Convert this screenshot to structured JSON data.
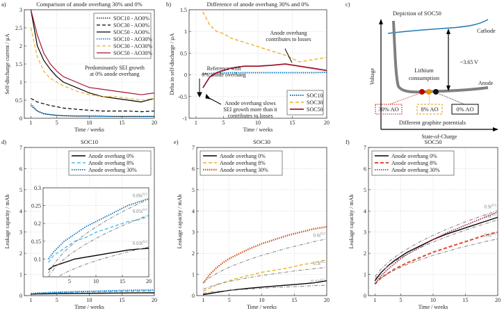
{
  "chart_data": [
    {
      "type": "line",
      "panel": "a)",
      "title": "Comparison of anode overhang 30% and 0%",
      "xlabel": "Time / weeks",
      "ylabel": "Self-discharge current / µA",
      "x": [
        1,
        2,
        3,
        4,
        5,
        6,
        8,
        10,
        12,
        14,
        16,
        18,
        20
      ],
      "xlim": [
        0,
        20
      ],
      "ylim": [
        0,
        3
      ],
      "xticks": [
        1,
        5,
        10,
        15,
        20
      ],
      "yticks": [
        0,
        0.5,
        1,
        1.5,
        2,
        2.5,
        3
      ],
      "grid": true,
      "legend": "upper right",
      "series": [
        {
          "name": "SOC10 - AO0%",
          "color": "#000000",
          "style": "dotted",
          "width": 1.2,
          "values": [
            0.35,
            0.2,
            0.12,
            0.1,
            0.08,
            0.07,
            0.06,
            0.06,
            0.06,
            0.05,
            0.05,
            0.05,
            0.05
          ]
        },
        {
          "name": "SOC30 - AO0%",
          "color": "#000000",
          "style": "dashed",
          "width": 1.2,
          "values": [
            0.55,
            0.45,
            0.4,
            0.35,
            0.32,
            0.28,
            0.25,
            0.22,
            0.2,
            0.2,
            0.2,
            0.18,
            0.2
          ]
        },
        {
          "name": "SOC50 - AO0%",
          "color": "#000000",
          "style": "solid",
          "width": 1.2,
          "values": [
            3,
            2,
            1.6,
            1.35,
            1.15,
            1.0,
            0.85,
            0.7,
            0.6,
            0.55,
            0.5,
            0.45,
            0.55
          ]
        },
        {
          "name": "SOC10 - AO30%",
          "color": "#0072bd",
          "style": "dotted",
          "width": 1.4,
          "values": [
            0.4,
            0.2,
            0.13,
            0.1,
            0.08,
            0.07,
            0.06,
            0.06,
            0.05,
            0.05,
            0.05,
            0.05,
            0.05
          ]
        },
        {
          "name": "SOC30 - AO30%",
          "color": "#edb120",
          "style": "dashed",
          "width": 1.2,
          "values": [
            2.5,
            1.7,
            1.3,
            1.1,
            1,
            0.9,
            0.75,
            0.65,
            0.6,
            0.6,
            0.55,
            0.5,
            0.55
          ]
        },
        {
          "name": "SOC50 - AO30%",
          "color": "#a2142f",
          "style": "solid",
          "width": 1.2,
          "values": [
            3,
            2.3,
            1.8,
            1.5,
            1.3,
            1.15,
            1,
            0.85,
            0.8,
            0.75,
            0.7,
            0.65,
            0.7
          ]
        }
      ],
      "annotations": [
        [
          "Predominantly SEI growth",
          "at 0% anode overhang"
        ]
      ]
    },
    {
      "type": "line",
      "panel": "b)",
      "title": "Difference of anode overhang 30% and 0%",
      "xlabel": "Time / weeks",
      "ylabel": "Delta in self-discharge / µA",
      "x": [
        1,
        2,
        3,
        4,
        5,
        6,
        8,
        10,
        12,
        14,
        16,
        18,
        20
      ],
      "xlim": [
        0,
        20
      ],
      "ylim": [
        -1,
        1.5
      ],
      "xticks": [
        1,
        5,
        10,
        15,
        20
      ],
      "yticks": [
        -1,
        -0.5,
        0,
        0.5,
        1,
        1.5
      ],
      "grid": true,
      "legend": "lower right",
      "series": [
        {
          "name": "SOC10",
          "color": "#0072bd",
          "style": "dotted",
          "width": 2,
          "values": [
            null,
            0.02,
            0.03,
            0.04,
            0.04,
            0.05,
            0.05,
            0.05,
            0.05,
            0.05,
            0.05,
            0.05,
            0.06
          ]
        },
        {
          "name": "SOC30",
          "color": "#edb120",
          "style": "dashed",
          "width": 1.4,
          "values": [
            null,
            1.45,
            1.15,
            1,
            0.95,
            0.85,
            0.75,
            0.65,
            0.55,
            0.45,
            0.3,
            0.35,
            0.4
          ]
        },
        {
          "name": "SOC50",
          "color": "#a2142f",
          "style": "solid",
          "width": 1.8,
          "values": [
            null,
            -0.3,
            -0.05,
            0.05,
            0.1,
            0.15,
            0.2,
            0.2,
            0.22,
            0.25,
            0.2,
            0.15,
            0.1
          ]
        }
      ],
      "annotations": [
        [
          "Anode overhang",
          "contributes to losses"
        ],
        [
          "Reference with",
          "0% anode overhang"
        ],
        [
          "Anode overhang slows",
          "SEI growth more than it",
          "contributes to losses"
        ]
      ]
    },
    {
      "type": "line",
      "panel": "d)",
      "title": "SOC10",
      "xlabel": "Time / weeks",
      "ylabel": "Leakage capacity / mAh",
      "x": [
        1,
        2,
        3,
        4,
        5,
        6,
        8,
        10,
        12,
        14,
        16,
        18,
        20
      ],
      "xlim": [
        0,
        20
      ],
      "ylim": [
        0,
        7
      ],
      "xticks": [
        1,
        5,
        10,
        15,
        20
      ],
      "yticks": [
        0,
        1,
        2,
        3,
        4,
        5,
        6,
        7
      ],
      "grid": true,
      "legend": "upper right",
      "series": [
        {
          "name": "Anode overhang 0%",
          "color": "#000000",
          "style": "solid",
          "width": 1.4,
          "values": [
            0.07,
            0.08,
            0.085,
            0.09,
            0.095,
            0.1,
            0.105,
            0.11,
            0.115,
            0.12,
            0.125,
            0.128,
            0.13
          ]
        },
        {
          "name": "Anode overhang 8%",
          "color": "#4dbeee",
          "style": "dashed",
          "width": 1.4,
          "values": [
            0.09,
            0.11,
            0.12,
            0.13,
            0.14,
            0.15,
            0.16,
            0.175,
            0.185,
            0.195,
            0.205,
            0.21,
            0.22
          ]
        },
        {
          "name": "Anode overhang 30%",
          "color": "#0072bd",
          "style": "dotted",
          "width": 1.8,
          "values": [
            0.1,
            0.12,
            0.135,
            0.15,
            0.16,
            0.17,
            0.19,
            0.205,
            0.22,
            0.235,
            0.25,
            0.26,
            0.27
          ]
        }
      ],
      "inset": {
        "xlim": [
          0,
          20
        ],
        "ylim": [
          0.05,
          0.3
        ],
        "xticks": [
          5,
          10,
          15,
          20
        ],
        "yticks": [
          0.1,
          0.15,
          0.2,
          0.25,
          0.3
        ]
      },
      "fits": [
        {
          "label": "0.06t",
          "exp": "0.5",
          "color": "#808080",
          "style": "dashdot",
          "width": 1,
          "values": [
            0.06,
            0.085,
            0.104,
            0.12,
            0.134,
            0.147,
            0.17,
            0.19,
            0.208,
            0.225,
            0.24,
            0.255,
            0.268
          ]
        },
        {
          "label": "0.05t",
          "exp": "0.5",
          "color": "#808080",
          "style": "dashdot",
          "width": 1,
          "values": [
            0.05,
            0.071,
            0.087,
            0.1,
            0.112,
            0.122,
            0.141,
            0.158,
            0.173,
            0.187,
            0.2,
            0.212,
            0.224
          ]
        },
        {
          "label": "0.03t",
          "exp": "0.5",
          "color": "#808080",
          "style": "dashdot",
          "width": 1,
          "values": [
            0.03,
            0.042,
            0.052,
            0.06,
            0.067,
            0.073,
            0.085,
            0.095,
            0.104,
            0.112,
            0.12,
            0.127,
            0.134
          ]
        }
      ]
    },
    {
      "type": "line",
      "panel": "e)",
      "title": "SOC30",
      "xlabel": "Time / weeks",
      "ylabel": "Leakage capacity / mAh",
      "x": [
        1,
        2,
        3,
        4,
        5,
        6,
        8,
        10,
        12,
        14,
        16,
        18,
        20
      ],
      "xlim": [
        0,
        20
      ],
      "ylim": [
        0,
        7
      ],
      "xticks": [
        1,
        5,
        10,
        15,
        20
      ],
      "yticks": [
        0,
        1,
        2,
        3,
        4,
        5,
        6,
        7
      ],
      "grid": true,
      "legend": "upper left",
      "series": [
        {
          "name": "Anode overhang 0%",
          "color": "#000000",
          "style": "solid",
          "width": 1.4,
          "values": [
            0.05,
            0.1,
            0.15,
            0.2,
            0.25,
            0.28,
            0.35,
            0.4,
            0.45,
            0.5,
            0.55,
            0.6,
            0.7
          ]
        },
        {
          "name": "Anode overhang 8%",
          "color": "#edb120",
          "style": "dashed",
          "width": 1.4,
          "values": [
            0.2,
            0.35,
            0.5,
            0.6,
            0.7,
            0.8,
            0.95,
            1.1,
            1.2,
            1.3,
            1.45,
            1.55,
            1.7
          ]
        },
        {
          "name": "Anode overhang 30%",
          "color": "#d95319",
          "style": "dotted",
          "width": 2.4,
          "values": [
            0.6,
            1.0,
            1.3,
            1.55,
            1.75,
            1.9,
            2.2,
            2.45,
            2.65,
            2.85,
            3.0,
            3.15,
            3.25
          ]
        }
      ],
      "fits": [
        {
          "label": "0.6t",
          "exp": "0.5",
          "color": "#808080",
          "style": "dashdot",
          "width": 1,
          "values": [
            0.6,
            0.85,
            1.04,
            1.2,
            1.34,
            1.47,
            1.7,
            1.9,
            2.08,
            2.25,
            2.4,
            2.55,
            2.68
          ]
        },
        {
          "label": "0.3t",
          "exp": "0.5",
          "color": "#808080",
          "style": "dashdot",
          "width": 1,
          "values": [
            0.3,
            0.42,
            0.52,
            0.6,
            0.67,
            0.73,
            0.85,
            0.95,
            1.04,
            1.12,
            1.2,
            1.27,
            1.34
          ]
        },
        {
          "label": "0.11t",
          "exp": "0.5",
          "color": "#808080",
          "style": "dashdot",
          "width": 1,
          "values": [
            0.11,
            0.16,
            0.19,
            0.22,
            0.25,
            0.27,
            0.31,
            0.35,
            0.38,
            0.41,
            0.44,
            0.47,
            0.49
          ]
        }
      ]
    },
    {
      "type": "line",
      "panel": "f)",
      "title": "SOC50",
      "xlabel": "Time / weeks",
      "ylabel": "Leakage capacity / mAh",
      "x": [
        1,
        2,
        3,
        4,
        5,
        6,
        8,
        10,
        12,
        14,
        16,
        18,
        20
      ],
      "xlim": [
        0,
        20
      ],
      "ylim": [
        0,
        7
      ],
      "xticks": [
        1,
        5,
        10,
        15,
        20
      ],
      "yticks": [
        0,
        1,
        2,
        3,
        4,
        5,
        6,
        7
      ],
      "grid": true,
      "legend": "upper left",
      "series": [
        {
          "name": "Anode overhang 0%",
          "color": "#000000",
          "style": "solid",
          "width": 1.4,
          "values": [
            0.7,
            1.1,
            1.4,
            1.65,
            1.85,
            2.05,
            2.35,
            2.65,
            2.9,
            3.1,
            3.3,
            3.5,
            3.7
          ]
        },
        {
          "name": "Anode overhang 8%",
          "color": "#e8442a",
          "style": "dashed",
          "width": 2,
          "values": [
            0.55,
            0.85,
            1.05,
            1.25,
            1.4,
            1.55,
            1.8,
            2.05,
            2.25,
            2.45,
            2.65,
            2.85,
            3.0
          ]
        },
        {
          "name": "Anode overhang 30%",
          "color": "#a2142f",
          "style": "dotted",
          "width": 1.6,
          "values": [
            0.55,
            0.95,
            1.25,
            1.5,
            1.75,
            1.95,
            2.3,
            2.65,
            2.95,
            3.2,
            3.45,
            3.7,
            3.95
          ]
        }
      ],
      "fits": [
        {
          "label": "0.9t",
          "exp": "0.5",
          "color": "#808080",
          "style": "dashdot",
          "width": 1,
          "values": [
            0.9,
            1.27,
            1.56,
            1.8,
            2.01,
            2.2,
            2.55,
            2.85,
            3.12,
            3.37,
            3.6,
            3.82,
            4.02
          ]
        },
        {
          "label": "0.8t",
          "exp": "0.5",
          "color": "#808080",
          "style": "dashdot",
          "width": 1,
          "values": [
            0.8,
            1.13,
            1.39,
            1.6,
            1.79,
            1.96,
            2.26,
            2.53,
            2.77,
            2.99,
            3.2,
            3.39,
            3.58
          ]
        },
        {
          "label": "0.6t",
          "exp": "0.5",
          "color": "#808080",
          "style": "dashdot",
          "width": 1,
          "values": [
            0.6,
            0.85,
            1.04,
            1.2,
            1.34,
            1.47,
            1.7,
            1.9,
            2.08,
            2.25,
            2.4,
            2.55,
            2.68
          ]
        }
      ]
    }
  ],
  "diagram": {
    "panel": "c)",
    "title": "Depiction of SOC50",
    "cathode": "Cathode",
    "voltage_gap": "~3.65 V",
    "lithium_consumption": [
      "Lithium",
      "consumption"
    ],
    "anode": "Anode",
    "markers": [
      "30% AO",
      "8% AO",
      "0% AO"
    ],
    "x_label": "State-of-Charge",
    "y_label": "Voltage",
    "caption": "Different graphite potentials"
  }
}
